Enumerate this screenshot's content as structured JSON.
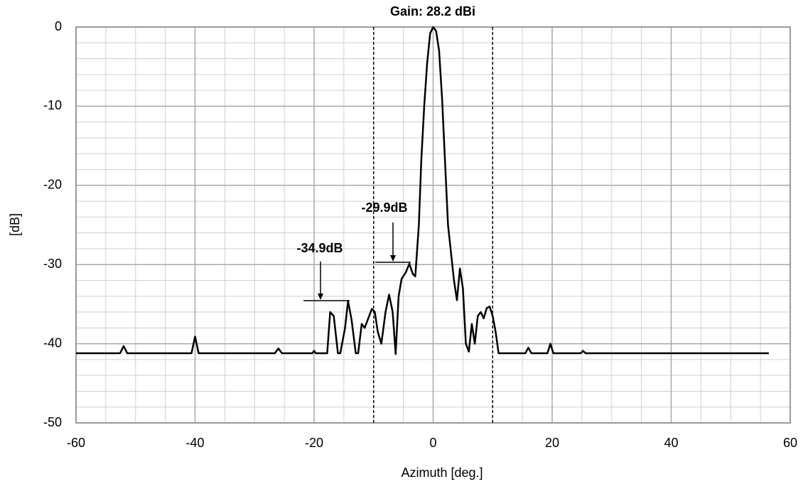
{
  "chart_data": {
    "type": "line",
    "title": "Gain: 28.2 dBi",
    "x_label": "Azimuth [deg.]",
    "y_label": "[dB]",
    "x": [
      -60,
      -52.6,
      -52,
      -51.4,
      -40.6,
      -40,
      -39.4,
      -26.6,
      -26,
      -25.4,
      -20.3,
      -20,
      -19.7,
      -17.8,
      -17.3,
      -16.7,
      -16,
      -15.6,
      -14.8,
      -14.3,
      -13.7,
      -13,
      -12.6,
      -12,
      -11.5,
      -11,
      -10.3,
      -9.8,
      -9.3,
      -8.7,
      -8,
      -7.4,
      -6.8,
      -6.3,
      -5.8,
      -5.3,
      -4.6,
      -4,
      -3.4,
      -3,
      -2.4,
      -2,
      -1.5,
      -1,
      -0.5,
      0,
      0.5,
      1,
      1.5,
      2,
      2.5,
      3,
      3.5,
      4,
      4.5,
      5,
      5.5,
      6,
      6.5,
      7,
      7.5,
      8,
      8.5,
      9,
      9.5,
      10,
      10.5,
      11,
      15.5,
      16,
      16.5,
      19.2,
      19.7,
      20.2,
      24.8,
      25.2,
      25.6,
      56.4
    ],
    "values": [
      -41.2,
      -41.2,
      -40.3,
      -41.2,
      -41.2,
      -39.1,
      -41.2,
      -41.2,
      -40.6,
      -41.2,
      -41.2,
      -40.9,
      -41.2,
      -41.2,
      -36,
      -36.5,
      -41.2,
      -41.2,
      -38,
      -34.6,
      -37,
      -41.2,
      -41.2,
      -37.5,
      -38,
      -37,
      -35.6,
      -36,
      -38.5,
      -40,
      -36,
      -33.8,
      -36,
      -41.3,
      -34,
      -31.8,
      -31,
      -29.9,
      -31.2,
      -31.5,
      -25,
      -17,
      -10,
      -4.5,
      -0.8,
      0,
      -0.5,
      -3,
      -9,
      -17,
      -25,
      -28.5,
      -32,
      -34.5,
      -30.5,
      -33,
      -40,
      -41,
      -37.5,
      -40,
      -36.5,
      -36,
      -36.8,
      -35.5,
      -35.3,
      -36.5,
      -38.5,
      -41.2,
      -41.2,
      -40.5,
      -41.2,
      -41.2,
      -40,
      -41.2,
      -41.2,
      -40.9,
      -41.2,
      -41.2
    ],
    "color": "#000000",
    "xlim": [
      -60,
      60
    ],
    "xticks": [
      -60,
      -40,
      -20,
      0,
      20,
      40,
      60
    ],
    "ylim": [
      -50,
      0
    ],
    "yticks": [
      -50,
      -40,
      -30,
      -20,
      -10,
      0
    ],
    "grid": true,
    "reference_lines_x": [
      -10,
      10
    ],
    "annotations": [
      "-34.9dB",
      "-29.9dB"
    ]
  }
}
